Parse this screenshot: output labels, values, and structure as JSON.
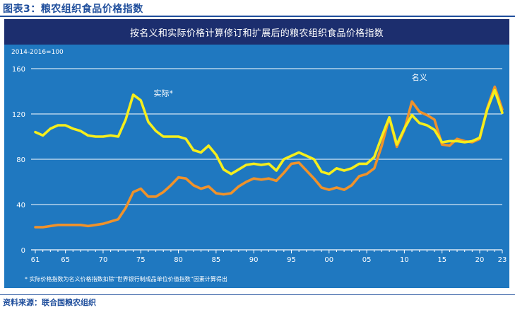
{
  "figure_title": "图表3：粮农组织食品价格指数",
  "source": "资料来源：联合国粮农组织",
  "chart_data": {
    "type": "line",
    "title": "按名义和实际价格计算修订和扩展后的粮农组织食品价格指数",
    "base_note": "2014-2016=100",
    "footnote": "* 实际价格指数为名义价格指数扣除“世界银行制成品单位价值指数”因素计算得出",
    "x": [
      1961,
      1962,
      1963,
      1964,
      1965,
      1966,
      1967,
      1968,
      1969,
      1970,
      1971,
      1972,
      1973,
      1974,
      1975,
      1976,
      1977,
      1978,
      1979,
      1980,
      1981,
      1982,
      1983,
      1984,
      1985,
      1986,
      1987,
      1988,
      1989,
      1990,
      1991,
      1992,
      1993,
      1994,
      1995,
      1996,
      1997,
      1998,
      1999,
      2000,
      2001,
      2002,
      2003,
      2004,
      2005,
      2006,
      2007,
      2008,
      2009,
      2010,
      2011,
      2012,
      2013,
      2014,
      2015,
      2016,
      2017,
      2018,
      2019,
      2020,
      2021,
      2022,
      2023
    ],
    "series": [
      {
        "name": "实际*",
        "color": "#f5ee1c",
        "values": [
          104,
          101,
          107,
          110,
          110,
          107,
          105,
          101,
          100,
          100,
          101,
          100,
          115,
          137,
          132,
          113,
          105,
          100,
          100,
          100,
          98,
          88,
          86,
          92,
          84,
          71,
          67,
          71,
          75,
          76,
          75,
          76,
          70,
          80,
          83,
          86,
          83,
          80,
          69,
          67,
          72,
          70,
          72,
          76,
          76,
          82,
          100,
          117,
          93,
          107,
          119,
          112,
          110,
          106,
          95,
          96,
          96,
          95,
          96,
          99,
          124,
          141,
          121
        ]
      },
      {
        "name": "名义",
        "color": "#f0922a",
        "values": [
          20,
          20,
          21,
          22,
          22,
          22,
          22,
          21,
          22,
          23,
          25,
          27,
          37,
          51,
          54,
          47,
          47,
          51,
          57,
          64,
          63,
          57,
          54,
          56,
          50,
          49,
          50,
          56,
          60,
          63,
          62,
          63,
          61,
          68,
          76,
          77,
          70,
          63,
          55,
          53,
          55,
          53,
          57,
          65,
          67,
          72,
          92,
          117,
          91,
          106,
          131,
          122,
          119,
          115,
          93,
          92,
          98,
          96,
          95,
          98,
          125,
          144,
          124
        ]
      }
    ],
    "ylim": [
      0,
      160
    ],
    "yticks": [
      0,
      40,
      80,
      120,
      160
    ],
    "xticks": [
      {
        "label": "61",
        "value": 1961
      },
      {
        "label": "65",
        "value": 1965
      },
      {
        "label": "70",
        "value": 1970
      },
      {
        "label": "75",
        "value": 1975
      },
      {
        "label": "80",
        "value": 1980
      },
      {
        "label": "85",
        "value": 1985
      },
      {
        "label": "90",
        "value": 1990
      },
      {
        "label": "95",
        "value": 1995
      },
      {
        "label": "00",
        "value": 2000
      },
      {
        "label": "05",
        "value": 2005
      },
      {
        "label": "10",
        "value": 2010
      },
      {
        "label": "15",
        "value": 2015
      },
      {
        "label": "20",
        "value": 2020
      },
      {
        "label": "23",
        "value": 2023
      }
    ],
    "annotations": [
      {
        "text": "实际*",
        "series": "实际*",
        "near_x": 1978,
        "near_y": 136
      },
      {
        "text": "名义",
        "series": "名义",
        "near_x": 2012,
        "near_y": 150
      }
    ],
    "grid": "horizontal"
  }
}
